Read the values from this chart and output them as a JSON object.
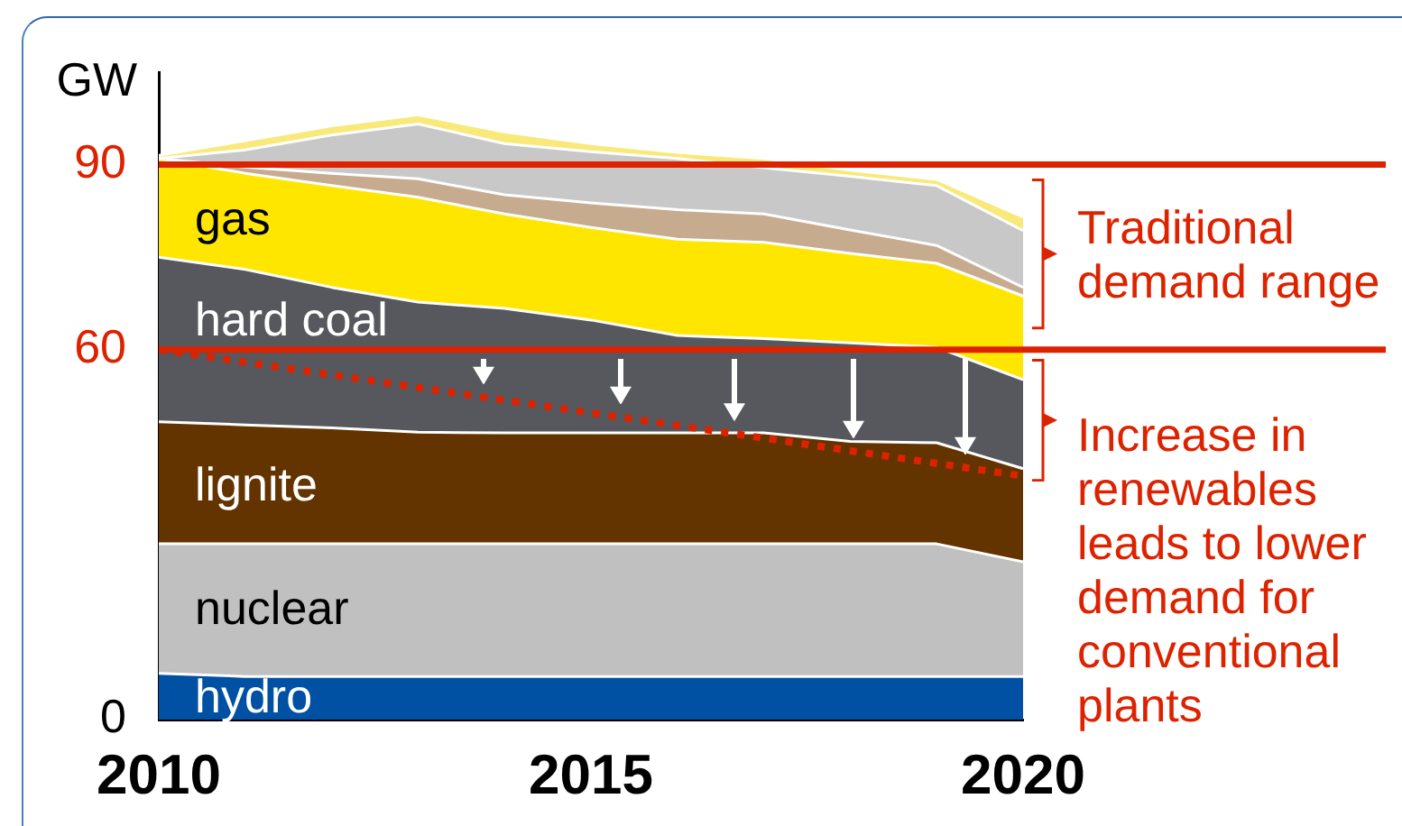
{
  "chart_data": {
    "type": "area",
    "stacked": true,
    "ylabel": "GW",
    "x": [
      2010,
      2011,
      2012,
      2013,
      2014,
      2015,
      2016,
      2017,
      2018,
      2019,
      2020
    ],
    "xlim": [
      2010,
      2020
    ],
    "xticks": [
      2010,
      2015,
      2020
    ],
    "ylim": [
      0,
      105
    ],
    "yticks": [
      0,
      60,
      90
    ],
    "grid": false,
    "legend": false,
    "marker": "none",
    "series": [
      {
        "name": "hydro",
        "color": "#0050a3",
        "values": [
          7.5,
          7,
          7,
          7,
          7,
          7,
          7,
          7,
          7,
          7,
          7
        ]
      },
      {
        "name": "nuclear",
        "color": "#c0c0c0",
        "values": [
          21,
          21.5,
          21.5,
          21.5,
          21.5,
          21.5,
          21.5,
          21.5,
          21.5,
          21.5,
          18.6
        ]
      },
      {
        "name": "lignite",
        "color": "#633400",
        "values": [
          19.8,
          19.3,
          18.8,
          18.1,
          18,
          18,
          18,
          18,
          16.6,
          16.4,
          15.1
        ]
      },
      {
        "name": "hard coal",
        "color": "#56585d",
        "values": [
          26.7,
          25.2,
          22.8,
          21.1,
          20.2,
          18.3,
          15.8,
          15.3,
          16,
          15.5,
          14.4
        ]
      },
      {
        "name": "gas",
        "color": "#ffe600",
        "values": [
          16,
          15.6,
          16.5,
          17,
          15.3,
          15,
          15.6,
          15.6,
          14.5,
          13.6,
          13.6
        ]
      },
      {
        "color": "#c7ab8f",
        "values": [
          0,
          1,
          2,
          3,
          3.1,
          4,
          4.8,
          4.6,
          3.8,
          2.9,
          1.4
        ]
      },
      {
        "color": "#c8c8c8",
        "values": [
          0,
          2.8,
          6.2,
          8.9,
          8.3,
          8.3,
          8.3,
          7.5,
          8.7,
          9.7,
          9.2
        ]
      },
      {
        "color": "#f9e97a",
        "values": [
          0.5,
          1.5,
          1.5,
          1.5,
          1.9,
          1.3,
          1,
          1.5,
          1,
          1,
          2.2
        ]
      },
      {
        "type": "line",
        "x": [
          2010,
          2020
        ],
        "values": [
          60,
          39.5
        ],
        "color": "#dd2200",
        "line_style": "dotted"
      }
    ],
    "ref_lines": [
      {
        "axis": "y",
        "value": 90,
        "color": "#dd2200"
      },
      {
        "axis": "y",
        "value": 60,
        "color": "#dd2200"
      }
    ],
    "annotations": [
      "Traditional demand range",
      "Increase in renewables leads to lower demand for conventional plants"
    ]
  }
}
